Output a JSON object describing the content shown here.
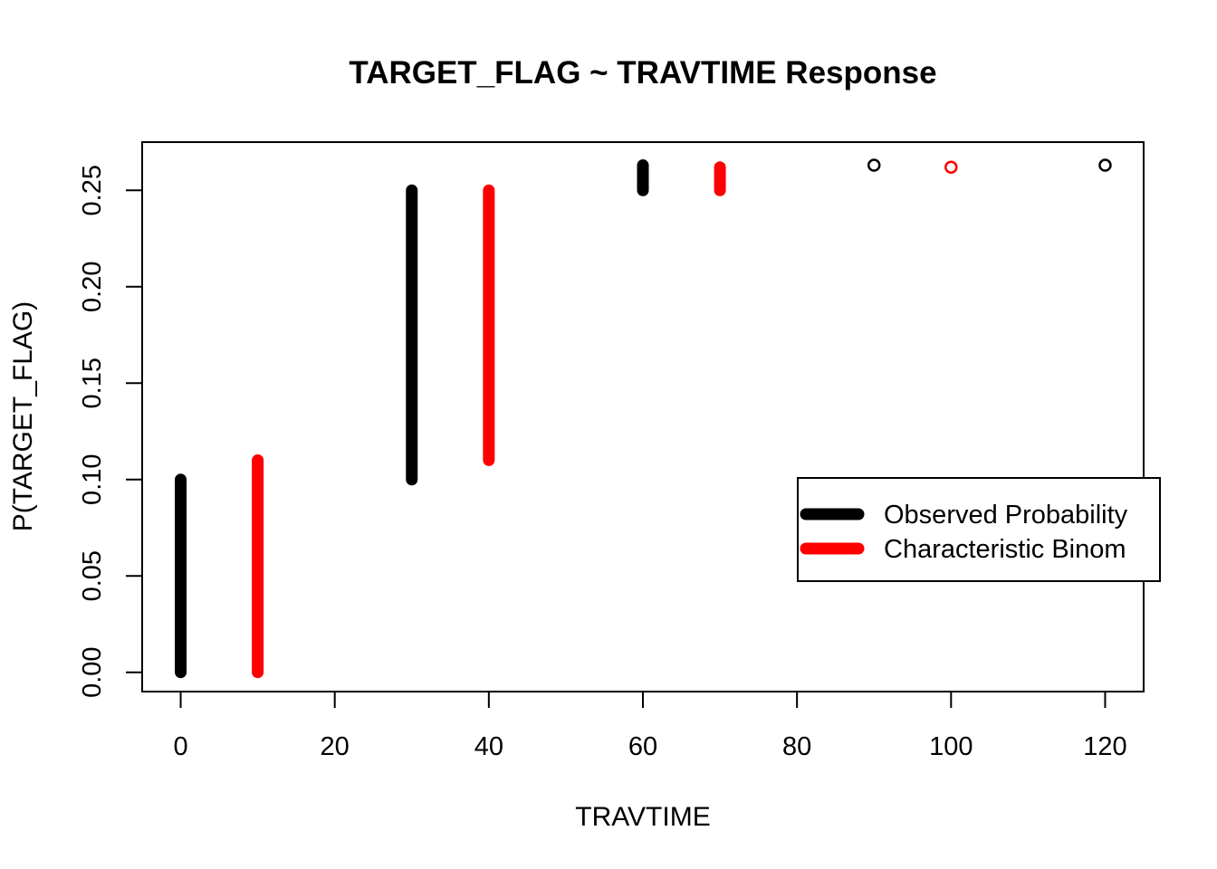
{
  "chart_data": {
    "type": "line",
    "title": "TARGET_FLAG ~ TRAVTIME Response",
    "xlabel": "TRAVTIME",
    "ylabel": "P(TARGET_FLAG)",
    "xlim": [
      -5,
      125
    ],
    "ylim": [
      -0.01,
      0.275
    ],
    "x_ticks": [
      0,
      20,
      40,
      60,
      80,
      100,
      120
    ],
    "x_tick_labels": [
      "0",
      "20",
      "40",
      "60",
      "80",
      "100",
      "120"
    ],
    "y_ticks": [
      0.0,
      0.05,
      0.1,
      0.15,
      0.2,
      0.25
    ],
    "y_tick_labels": [
      "0.00",
      "0.05",
      "0.10",
      "0.15",
      "0.20",
      "0.25"
    ],
    "grid": false,
    "legend_position": "right",
    "series": [
      {
        "name": "Observed Probability",
        "color": "#000000",
        "segments": [
          {
            "x": 0,
            "y_min": 0.0,
            "y_max": 0.1
          },
          {
            "x": 30,
            "y_min": 0.1,
            "y_max": 0.25
          },
          {
            "x": 60,
            "y_min": 0.25,
            "y_max": 0.263
          }
        ],
        "points": [
          {
            "x": 90,
            "y": 0.263
          },
          {
            "x": 120,
            "y": 0.263
          }
        ]
      },
      {
        "name": "Characteristic Binom",
        "color": "#ff0000",
        "segments": [
          {
            "x": 10,
            "y_min": 0.0,
            "y_max": 0.11
          },
          {
            "x": 40,
            "y_min": 0.11,
            "y_max": 0.25
          },
          {
            "x": 70,
            "y_min": 0.25,
            "y_max": 0.262
          }
        ],
        "points": [
          {
            "x": 100,
            "y": 0.262
          }
        ]
      }
    ]
  }
}
